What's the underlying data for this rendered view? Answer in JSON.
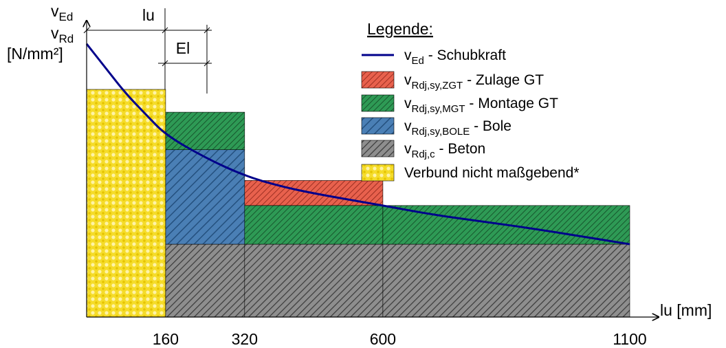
{
  "chart_data": {
    "type": "area",
    "title": "",
    "x_unit_label": "lu [mm]",
    "y_label_lines": [
      {
        "base": "v",
        "sub": "Ed"
      },
      {
        "base": "v",
        "sub": "Rd"
      },
      {
        "base": "[N/mm²]",
        "sub": ""
      }
    ],
    "x_ticks": [
      160,
      320,
      600,
      1100
    ],
    "x_range": [
      0,
      1100
    ],
    "y_range": [
      0,
      1.0
    ],
    "dimension_labels": {
      "lu": "lu",
      "el": "El"
    },
    "segments": [
      {
        "x0": 0,
        "x1": 160,
        "layers": [
          {
            "series": "verbund",
            "y0": 0,
            "y1": 1.0
          }
        ]
      },
      {
        "x0": 160,
        "x1": 320,
        "layers": [
          {
            "series": "beton",
            "y0": 0,
            "y1": 0.32
          },
          {
            "series": "bole",
            "y0": 0.32,
            "y1": 0.735
          },
          {
            "series": "mgt",
            "y0": 0.735,
            "y1": 0.9
          }
        ]
      },
      {
        "x0": 320,
        "x1": 600,
        "layers": [
          {
            "series": "beton",
            "y0": 0,
            "y1": 0.32
          },
          {
            "series": "mgt",
            "y0": 0.32,
            "y1": 0.49
          },
          {
            "series": "zgt",
            "y0": 0.49,
            "y1": 0.6
          }
        ]
      },
      {
        "x0": 600,
        "x1": 1100,
        "layers": [
          {
            "series": "beton",
            "y0": 0,
            "y1": 0.32
          },
          {
            "series": "mgt",
            "y0": 0.32,
            "y1": 0.49
          }
        ]
      }
    ],
    "curve": {
      "name": "v_Ed - Schubkraft",
      "color": "#00008b",
      "points": [
        [
          0,
          1.2
        ],
        [
          40,
          1.09
        ],
        [
          80,
          0.98
        ],
        [
          120,
          0.89
        ],
        [
          160,
          0.8
        ],
        [
          240,
          0.7
        ],
        [
          320,
          0.62
        ],
        [
          400,
          0.57
        ],
        [
          480,
          0.535
        ],
        [
          600,
          0.49
        ],
        [
          700,
          0.45
        ],
        [
          800,
          0.42
        ],
        [
          900,
          0.39
        ],
        [
          1000,
          0.355
        ],
        [
          1100,
          0.32
        ]
      ]
    },
    "legend": {
      "title": "Legende:",
      "position": "top-right",
      "items": [
        {
          "key": "curve",
          "base": "v",
          "sub": "Ed",
          "text": " - Schubkraft",
          "kind": "line"
        },
        {
          "key": "zgt",
          "base": "v",
          "sub": "Rdj,sy,ZGT",
          "text": " - Zulage GT",
          "kind": "patch"
        },
        {
          "key": "mgt",
          "base": "v",
          "sub": "Rdj,sy,MGT",
          "text": " - Montage GT",
          "kind": "patch"
        },
        {
          "key": "bole",
          "base": "v",
          "sub": "Rdj,sy,BOLE",
          "text": " - Bole",
          "kind": "patch"
        },
        {
          "key": "beton",
          "base": "v",
          "sub": "Rdj,c",
          "text": " - Beton",
          "kind": "patch"
        },
        {
          "key": "verbund",
          "base": "",
          "sub": "",
          "text": "Verbund nicht maßgebend*",
          "kind": "patch"
        }
      ]
    },
    "colors": {
      "zgt": "#e8614d",
      "mgt": "#2e9a55",
      "bole": "#4a7fb5",
      "beton": "#7a7a7a",
      "verbund": "#f5dc2a",
      "curve": "#00008b"
    }
  }
}
